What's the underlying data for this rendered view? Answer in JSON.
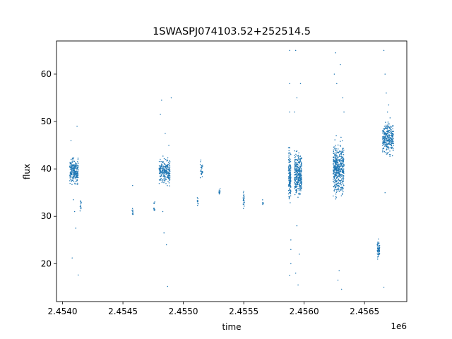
{
  "chart_data": {
    "type": "scatter",
    "title": "1SWASPJ074103.52+252514.5",
    "xlabel": "time",
    "ylabel": "flux",
    "x_offset_label": "1e6",
    "xlim": [
      2.45395,
      2.45685
    ],
    "ylim": [
      12,
      67
    ],
    "x_ticks": [
      2.454,
      2.4545,
      2.455,
      2.4555,
      2.456,
      2.4565
    ],
    "x_tick_labels": [
      "2.4540",
      "2.4545",
      "2.4550",
      "2.4555",
      "2.4560",
      "2.4565"
    ],
    "y_ticks": [
      20,
      30,
      40,
      50,
      60
    ],
    "y_tick_labels": [
      "20",
      "30",
      "40",
      "50",
      "60"
    ],
    "grid": false,
    "marker_color": "#1f77b4",
    "series": [
      {
        "clusters": [
          {
            "x_start": 2.45406,
            "x_end": 2.45413,
            "y_center": 39.5,
            "y_spread": 2.0,
            "n": 220,
            "outliers": [
              [
                2.45408,
                21.2
              ],
              [
                2.45413,
                17.6
              ],
              [
                2.45411,
                27.5
              ],
              [
                2.45409,
                33.5
              ],
              [
                2.45412,
                49.0
              ],
              [
                2.45407,
                46.0
              ],
              [
                2.4541,
                31.0
              ]
            ]
          },
          {
            "x_start": 2.454145,
            "x_end": 2.454155,
            "y_center": 32.5,
            "y_spread": 1.0,
            "n": 12,
            "outliers": []
          },
          {
            "x_start": 2.454575,
            "x_end": 2.454585,
            "y_center": 31.0,
            "y_spread": 0.9,
            "n": 10,
            "outliers": [
              [
                2.45458,
                36.5
              ]
            ]
          },
          {
            "x_start": 2.454755,
            "x_end": 2.454765,
            "y_center": 32.2,
            "y_spread": 1.2,
            "n": 10,
            "outliers": []
          },
          {
            "x_start": 2.4548,
            "x_end": 2.45489,
            "y_center": 39.5,
            "y_spread": 2.0,
            "n": 240,
            "outliers": [
              [
                2.45481,
                51.5
              ],
              [
                2.45482,
                54.5
              ],
              [
                2.45484,
                26.5
              ],
              [
                2.45486,
                24.0
              ],
              [
                2.45487,
                15.2
              ],
              [
                2.45485,
                47.5
              ],
              [
                2.45483,
                31.0
              ],
              [
                2.4549,
                55.0
              ],
              [
                2.45488,
                45.0
              ]
            ]
          },
          {
            "x_start": 2.455115,
            "x_end": 2.455125,
            "y_center": 33.0,
            "y_spread": 0.8,
            "n": 10,
            "outliers": []
          },
          {
            "x_start": 2.45514,
            "x_end": 2.45516,
            "y_center": 39.5,
            "y_spread": 1.6,
            "n": 30,
            "outliers": []
          },
          {
            "x_start": 2.455295,
            "x_end": 2.455305,
            "y_center": 35.2,
            "y_spread": 0.9,
            "n": 12,
            "outliers": []
          },
          {
            "x_start": 2.455495,
            "x_end": 2.455505,
            "y_center": 33.3,
            "y_spread": 1.3,
            "n": 25,
            "outliers": []
          },
          {
            "x_start": 2.455655,
            "x_end": 2.455665,
            "y_center": 33.0,
            "y_spread": 0.6,
            "n": 8,
            "outliers": []
          },
          {
            "x_start": 2.45587,
            "x_end": 2.45589,
            "y_center": 38.5,
            "y_spread": 4.0,
            "n": 150,
            "outliers": [
              [
                2.45588,
                65.0
              ],
              [
                2.45588,
                58.0
              ],
              [
                2.45589,
                20.0
              ],
              [
                2.45588,
                17.5
              ],
              [
                2.45589,
                25.0
              ],
              [
                2.45588,
                52.0
              ],
              [
                2.45589,
                23.0
              ]
            ]
          },
          {
            "x_start": 2.45592,
            "x_end": 2.45598,
            "y_center": 39.0,
            "y_spread": 3.5,
            "n": 330,
            "outliers": [
              [
                2.45593,
                65.0
              ],
              [
                2.45594,
                55.0
              ],
              [
                2.45595,
                15.5
              ],
              [
                2.45593,
                18.0
              ],
              [
                2.45596,
                22.0
              ],
              [
                2.45597,
                58.0
              ],
              [
                2.45594,
                28.0
              ],
              [
                2.45592,
                52.0
              ]
            ]
          },
          {
            "x_start": 2.45624,
            "x_end": 2.45633,
            "y_center": 40.0,
            "y_spread": 4.0,
            "n": 480,
            "outliers": [
              [
                2.45626,
                64.5
              ],
              [
                2.45627,
                58.0
              ],
              [
                2.4563,
                62.0
              ],
              [
                2.45632,
                55.0
              ],
              [
                2.45628,
                16.5
              ],
              [
                2.45631,
                14.6
              ],
              [
                2.45629,
                18.5
              ],
              [
                2.45625,
                60.0
              ],
              [
                2.45633,
                52.0
              ]
            ]
          },
          {
            "x_start": 2.456605,
            "x_end": 2.456625,
            "y_center": 23.0,
            "y_spread": 1.3,
            "n": 60,
            "outliers": []
          },
          {
            "x_start": 2.45665,
            "x_end": 2.45674,
            "y_center": 46.5,
            "y_spread": 2.5,
            "n": 300,
            "outliers": [
              [
                2.45666,
                65.0
              ],
              [
                2.45667,
                60.0
              ],
              [
                2.45668,
                56.0
              ],
              [
                2.45666,
                15.0
              ],
              [
                2.45667,
                35.0
              ],
              [
                2.45669,
                52.0
              ],
              [
                2.4567,
                53.5
              ]
            ]
          }
        ]
      }
    ]
  }
}
